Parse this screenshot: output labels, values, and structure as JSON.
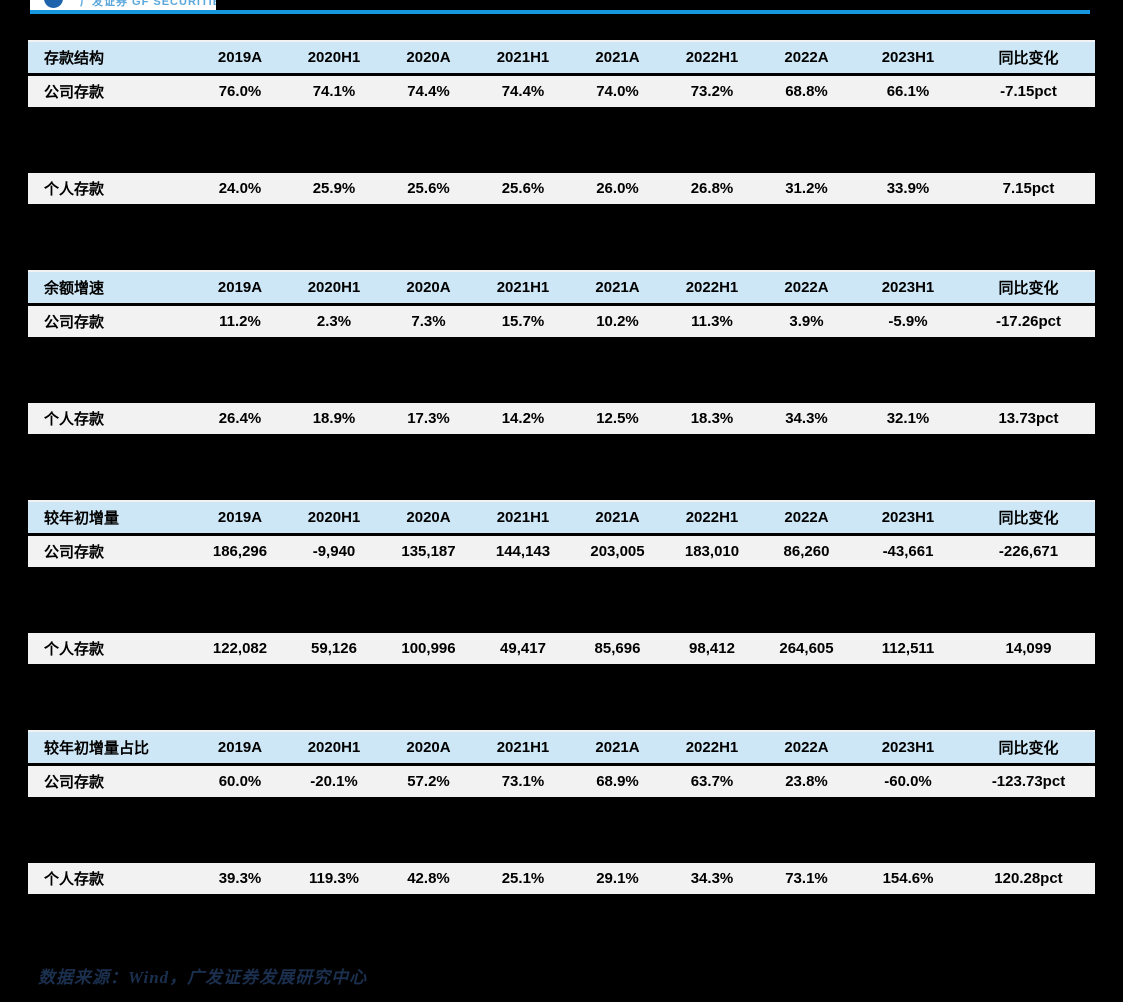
{
  "brand": {
    "logo_text": "广发证券 GF SECURITIES",
    "line_color": "#1598dd",
    "logo_mark_color": "#1f63ad"
  },
  "columns": [
    "2019A",
    "2020H1",
    "2020A",
    "2021H1",
    "2021A",
    "2022H1",
    "2022A",
    "2023H1",
    "同比变化"
  ],
  "tables": [
    {
      "title": "存款结构",
      "rows": [
        {
          "label": "公司存款",
          "values": [
            "76.0%",
            "74.1%",
            "74.4%",
            "74.4%",
            "74.0%",
            "73.2%",
            "68.8%",
            "66.1%",
            "-7.15pct"
          ]
        },
        {
          "label": "个人存款",
          "values": [
            "24.0%",
            "25.9%",
            "25.6%",
            "25.6%",
            "26.0%",
            "26.8%",
            "31.2%",
            "33.9%",
            "7.15pct"
          ]
        }
      ]
    },
    {
      "title": "余额增速",
      "rows": [
        {
          "label": "公司存款",
          "values": [
            "11.2%",
            "2.3%",
            "7.3%",
            "15.7%",
            "10.2%",
            "11.3%",
            "3.9%",
            "-5.9%",
            "-17.26pct"
          ]
        },
        {
          "label": "个人存款",
          "values": [
            "26.4%",
            "18.9%",
            "17.3%",
            "14.2%",
            "12.5%",
            "18.3%",
            "34.3%",
            "32.1%",
            "13.73pct"
          ]
        }
      ]
    },
    {
      "title": "较年初增量",
      "rows": [
        {
          "label": "公司存款",
          "values": [
            "186,296",
            "-9,940",
            "135,187",
            "144,143",
            "203,005",
            "183,010",
            "86,260",
            "-43,661",
            "-226,671"
          ]
        },
        {
          "label": "个人存款",
          "values": [
            "122,082",
            "59,126",
            "100,996",
            "49,417",
            "85,696",
            "98,412",
            "264,605",
            "112,511",
            "14,099"
          ]
        }
      ]
    },
    {
      "title": "较年初增量占比",
      "rows": [
        {
          "label": "公司存款",
          "values": [
            "60.0%",
            "-20.1%",
            "57.2%",
            "73.1%",
            "68.9%",
            "63.7%",
            "23.8%",
            "-60.0%",
            "-123.73pct"
          ]
        },
        {
          "label": "个人存款",
          "values": [
            "39.3%",
            "119.3%",
            "42.8%",
            "25.1%",
            "29.1%",
            "34.3%",
            "73.1%",
            "154.6%",
            "120.28pct"
          ]
        }
      ]
    }
  ],
  "footer": {
    "source_note": "数据来源：Wind，广发证券发展研究中心"
  },
  "colors": {
    "page_background": "#000000",
    "header_row_background": "#cde7f6",
    "data_row_background": "#f2f2f2",
    "table_text": "#000000",
    "source_text": "#1b2f4e"
  }
}
